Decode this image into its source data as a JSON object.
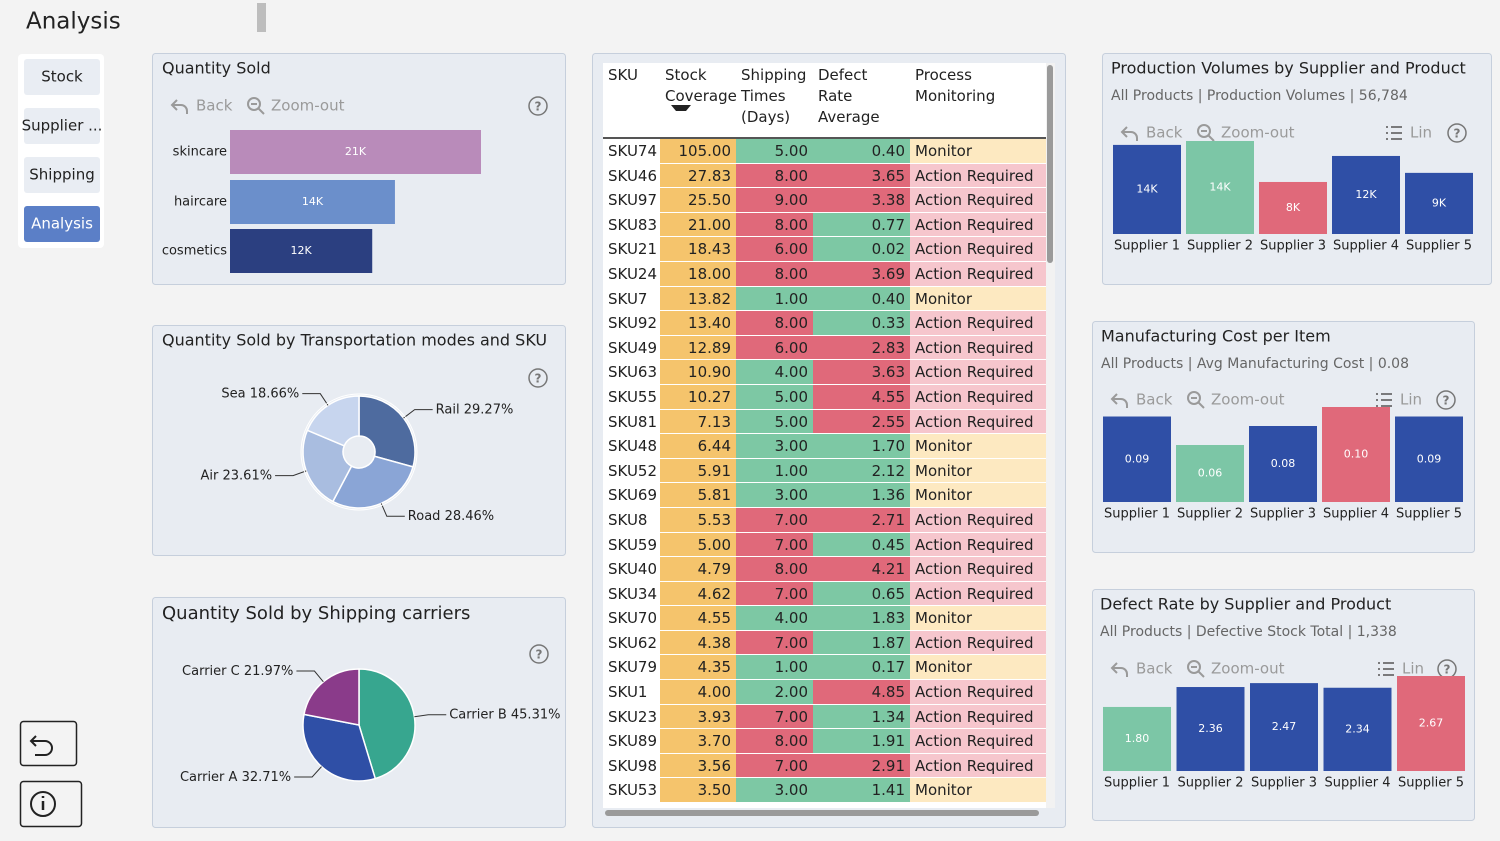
{
  "header": {
    "title": "Analysis"
  },
  "nav": {
    "items": [
      "Stock",
      "Supplier ...",
      "Shipping",
      "Analysis"
    ],
    "active": 3
  },
  "toolbar": {
    "back": "Back",
    "zoom_out": "Zoom-out",
    "lin": "Lin",
    "help": "?"
  },
  "chart_data": [
    {
      "type": "hbar",
      "title": "Quantity Sold",
      "categories": [
        "skincare",
        "haircare",
        "cosmetics"
      ],
      "values": [
        21000,
        13800,
        11900
      ],
      "value_labels": [
        "21K",
        "14K",
        "12K"
      ],
      "colors": [
        "#b98bba",
        "#6b8fcb",
        "#2b3f80"
      ]
    },
    {
      "type": "pie",
      "donut": true,
      "title": "Quantity Sold by Transportation modes and SKU",
      "categories": [
        "Rail",
        "Road",
        "Air",
        "Sea"
      ],
      "values": [
        29.27,
        28.46,
        23.61,
        18.66
      ],
      "value_labels": [
        "29.27%",
        "28.46%",
        "23.61%",
        "18.66%"
      ],
      "colors": [
        "#4e6b9f",
        "#8aa5d6",
        "#a9bde0",
        "#c7d5ee"
      ]
    },
    {
      "type": "pie",
      "donut": false,
      "title": "Quantity Sold by Shipping carriers",
      "categories": [
        "Carrier B",
        "Carrier A",
        "Carrier C"
      ],
      "values": [
        45.31,
        32.71,
        21.97
      ],
      "value_labels": [
        "45.31%",
        "32.71%",
        "21.97%"
      ],
      "colors": [
        "#37a68f",
        "#2f4fa6",
        "#8a3b8a"
      ]
    },
    {
      "type": "bar",
      "title": "Production Volumes by Supplier and Product",
      "subtitle": "All Products | Production Volumes | 56,784",
      "categories": [
        "Supplier 1",
        "Supplier 2",
        "Supplier 3",
        "Supplier 4",
        "Supplier 5"
      ],
      "values": [
        13700,
        14300,
        8000,
        12000,
        9400
      ],
      "value_labels": [
        "14K",
        "14K",
        "8K",
        "12K",
        "9K"
      ],
      "colors": [
        "#2f4fa6",
        "#7cc6a6",
        "#e0697a",
        "#2f4fa6",
        "#2f4fa6"
      ]
    },
    {
      "type": "bar",
      "title": "Manufacturing Cost per Item",
      "subtitle": "All Products | Avg Manufacturing Cost | 0.08",
      "categories": [
        "Supplier 1",
        "Supplier 2",
        "Supplier 3",
        "Supplier 4",
        "Supplier 5"
      ],
      "values": [
        0.09,
        0.06,
        0.08,
        0.1,
        0.09
      ],
      "value_labels": [
        "0.09",
        "0.06",
        "0.08",
        "0.10",
        "0.09"
      ],
      "colors": [
        "#2f4fa6",
        "#7cc6a6",
        "#2f4fa6",
        "#e0697a",
        "#2f4fa6"
      ]
    },
    {
      "type": "bar",
      "title": "Defect Rate by Supplier and Product",
      "subtitle": "All Products |  Defective Stock Total | 1,338",
      "categories": [
        "Supplier 1",
        "Supplier 2",
        "Supplier 3",
        "Supplier 4",
        "Supplier 5"
      ],
      "values": [
        1.8,
        2.36,
        2.47,
        2.34,
        2.67
      ],
      "value_labels": [
        "1.80",
        "2.36",
        "2.47",
        "2.34",
        "2.67"
      ],
      "colors": [
        "#7cc6a6",
        "#2f4fa6",
        "#2f4fa6",
        "#2f4fa6",
        "#e0697a"
      ]
    }
  ],
  "table": {
    "columns": [
      "SKU",
      "Stock Coverage",
      "Shipping Times (Days)",
      "Defect Rate Average",
      "Process Monitoring"
    ],
    "sort_column": 1,
    "stock_fill": "#f5c46c",
    "palette": {
      "good": "#7dc8a4",
      "bad": "#e0697a"
    },
    "process_fills": {
      "Monitor": "#fde9c1",
      "Action Required": "#f6c6cd"
    },
    "rows": [
      {
        "cells": [
          "SKU74",
          "105.00",
          "5.00",
          "0.40",
          "Monitor"
        ],
        "fills": [
          "good",
          "good"
        ]
      },
      {
        "cells": [
          "SKU46",
          "27.83",
          "8.00",
          "3.65",
          "Action Required"
        ],
        "fills": [
          "bad",
          "bad"
        ]
      },
      {
        "cells": [
          "SKU97",
          "25.50",
          "9.00",
          "3.38",
          "Action Required"
        ],
        "fills": [
          "bad",
          "bad"
        ]
      },
      {
        "cells": [
          "SKU83",
          "21.00",
          "8.00",
          "0.77",
          "Action Required"
        ],
        "fills": [
          "bad",
          "good"
        ]
      },
      {
        "cells": [
          "SKU21",
          "18.43",
          "6.00",
          "0.02",
          "Action Required"
        ],
        "fills": [
          "bad",
          "good"
        ]
      },
      {
        "cells": [
          "SKU24",
          "18.00",
          "8.00",
          "3.69",
          "Action Required"
        ],
        "fills": [
          "bad",
          "bad"
        ]
      },
      {
        "cells": [
          "SKU7",
          "13.82",
          "1.00",
          "0.40",
          "Monitor"
        ],
        "fills": [
          "good",
          "good"
        ]
      },
      {
        "cells": [
          "SKU92",
          "13.40",
          "8.00",
          "0.33",
          "Action Required"
        ],
        "fills": [
          "bad",
          "good"
        ]
      },
      {
        "cells": [
          "SKU49",
          "12.89",
          "6.00",
          "2.83",
          "Action Required"
        ],
        "fills": [
          "bad",
          "bad"
        ]
      },
      {
        "cells": [
          "SKU63",
          "10.90",
          "4.00",
          "3.63",
          "Action Required"
        ],
        "fills": [
          "good",
          "bad"
        ]
      },
      {
        "cells": [
          "SKU55",
          "10.27",
          "5.00",
          "4.55",
          "Action Required"
        ],
        "fills": [
          "good",
          "bad"
        ]
      },
      {
        "cells": [
          "SKU81",
          "7.13",
          "5.00",
          "2.55",
          "Action Required"
        ],
        "fills": [
          "good",
          "bad"
        ]
      },
      {
        "cells": [
          "SKU48",
          "6.44",
          "3.00",
          "1.70",
          "Monitor"
        ],
        "fills": [
          "good",
          "good"
        ]
      },
      {
        "cells": [
          "SKU52",
          "5.91",
          "1.00",
          "2.12",
          "Monitor"
        ],
        "fills": [
          "good",
          "good"
        ]
      },
      {
        "cells": [
          "SKU69",
          "5.81",
          "3.00",
          "1.36",
          "Monitor"
        ],
        "fills": [
          "good",
          "good"
        ]
      },
      {
        "cells": [
          "SKU8",
          "5.53",
          "7.00",
          "2.71",
          "Action Required"
        ],
        "fills": [
          "bad",
          "bad"
        ]
      },
      {
        "cells": [
          "SKU59",
          "5.00",
          "7.00",
          "0.45",
          "Action Required"
        ],
        "fills": [
          "bad",
          "good"
        ]
      },
      {
        "cells": [
          "SKU40",
          "4.79",
          "8.00",
          "4.21",
          "Action Required"
        ],
        "fills": [
          "bad",
          "bad"
        ]
      },
      {
        "cells": [
          "SKU34",
          "4.62",
          "7.00",
          "0.65",
          "Action Required"
        ],
        "fills": [
          "bad",
          "good"
        ]
      },
      {
        "cells": [
          "SKU70",
          "4.55",
          "4.00",
          "1.83",
          "Monitor"
        ],
        "fills": [
          "good",
          "good"
        ]
      },
      {
        "cells": [
          "SKU62",
          "4.38",
          "7.00",
          "1.87",
          "Action Required"
        ],
        "fills": [
          "bad",
          "good"
        ]
      },
      {
        "cells": [
          "SKU79",
          "4.35",
          "1.00",
          "0.17",
          "Monitor"
        ],
        "fills": [
          "good",
          "good"
        ]
      },
      {
        "cells": [
          "SKU1",
          "4.00",
          "2.00",
          "4.85",
          "Action Required"
        ],
        "fills": [
          "good",
          "bad"
        ]
      },
      {
        "cells": [
          "SKU23",
          "3.93",
          "7.00",
          "1.34",
          "Action Required"
        ],
        "fills": [
          "bad",
          "good"
        ]
      },
      {
        "cells": [
          "SKU89",
          "3.70",
          "8.00",
          "1.91",
          "Action Required"
        ],
        "fills": [
          "bad",
          "good"
        ]
      },
      {
        "cells": [
          "SKU98",
          "3.56",
          "7.00",
          "2.91",
          "Action Required"
        ],
        "fills": [
          "bad",
          "bad"
        ]
      },
      {
        "cells": [
          "SKU53",
          "3.50",
          "3.00",
          "1.41",
          "Monitor"
        ],
        "fills": [
          "good",
          "good"
        ]
      }
    ]
  }
}
